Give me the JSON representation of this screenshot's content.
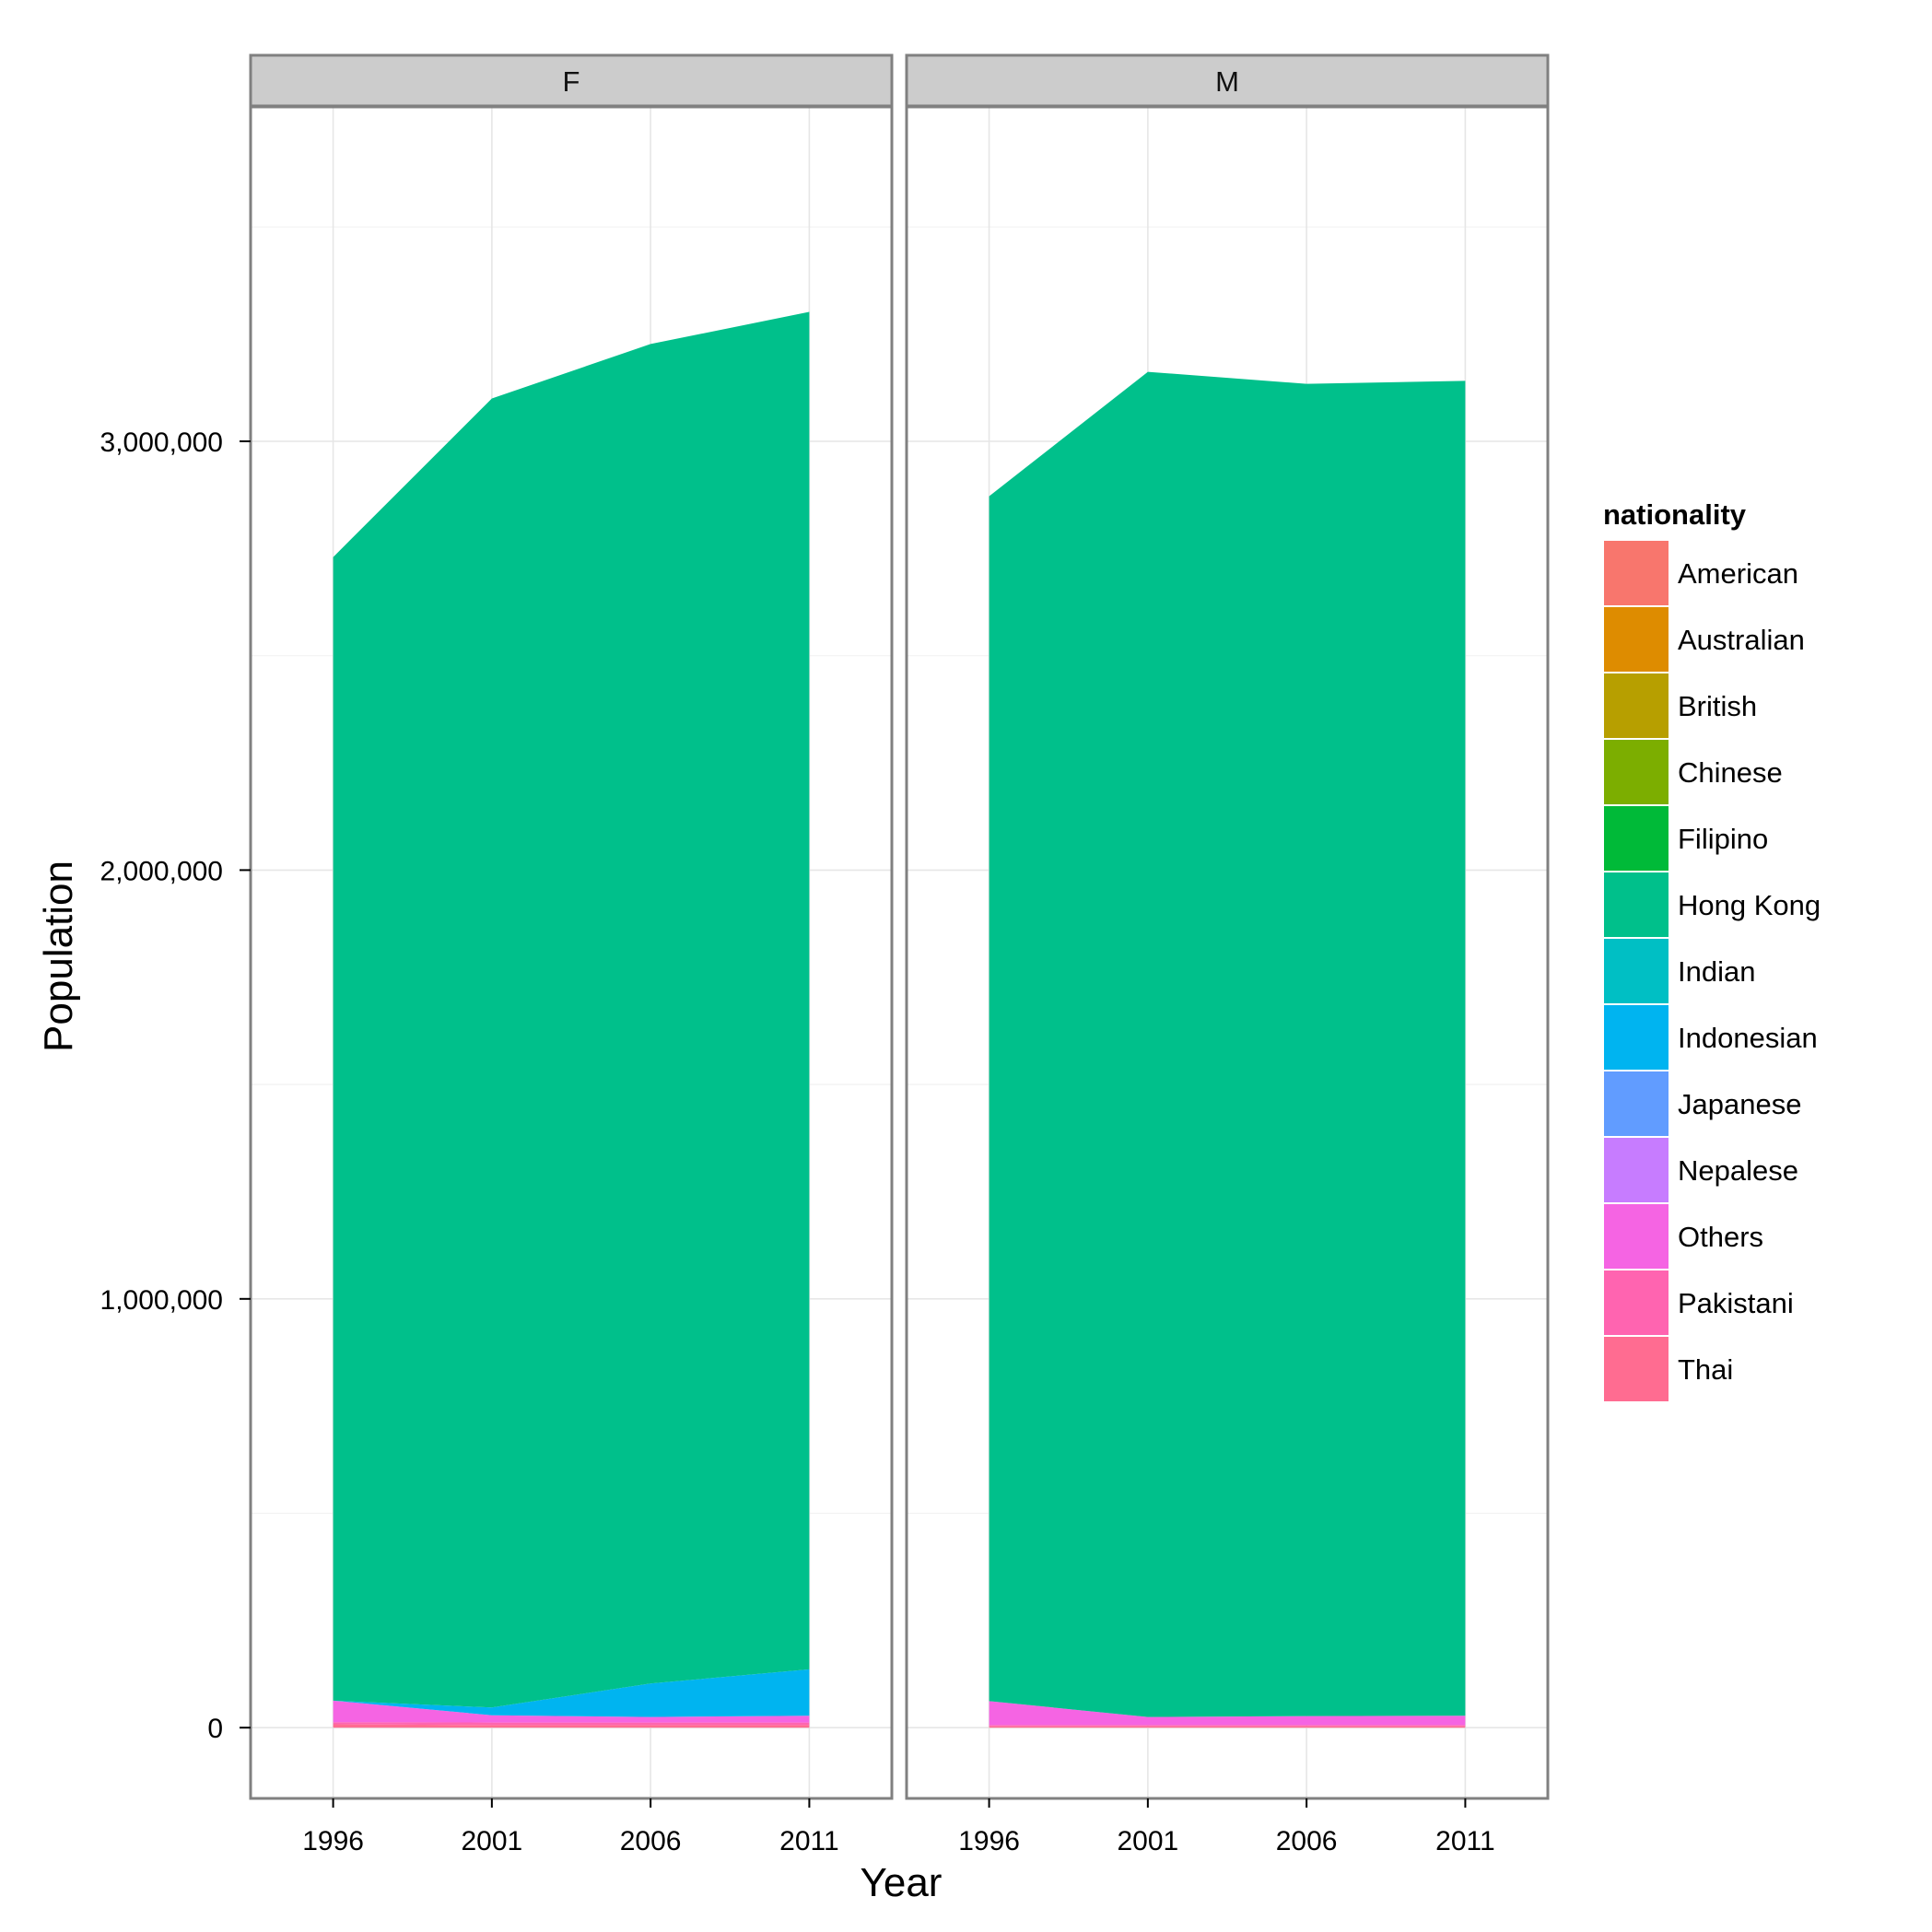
{
  "chart_data": {
    "type": "area",
    "stacked": true,
    "facet_by": "sex",
    "panels": [
      "F",
      "M"
    ],
    "xlabel": "Year",
    "ylabel": "Population",
    "x": [
      1996,
      2001,
      2006,
      2011
    ],
    "x_ticks": [
      "1996",
      "2001",
      "2006",
      "2011"
    ],
    "ylim": [
      -165000,
      3780000
    ],
    "y_ticks": [
      {
        "value": 0,
        "label": "0"
      },
      {
        "value": 1000000,
        "label": "1,000,000"
      },
      {
        "value": 2000000,
        "label": "2,000,000"
      },
      {
        "value": 3000000,
        "label": "3,000,000"
      }
    ],
    "grid": true,
    "legend": {
      "title": "nationality",
      "position": "right",
      "entries": [
        {
          "name": "American",
          "color": "#F8766D"
        },
        {
          "name": "Australian",
          "color": "#DE8C00"
        },
        {
          "name": "British",
          "color": "#B79F00"
        },
        {
          "name": "Chinese",
          "color": "#7CAE00"
        },
        {
          "name": "Filipino",
          "color": "#00BA38"
        },
        {
          "name": "Hong Kong",
          "color": "#00C08B"
        },
        {
          "name": "Indian",
          "color": "#00BFC4"
        },
        {
          "name": "Indonesian",
          "color": "#00B4F0"
        },
        {
          "name": "Japanese",
          "color": "#619CFF"
        },
        {
          "name": "Nepalese",
          "color": "#C77CFF"
        },
        {
          "name": "Others",
          "color": "#F564E3"
        },
        {
          "name": "Pakistani",
          "color": "#FF64B0"
        },
        {
          "name": "Thai",
          "color": "#FF6C91"
        }
      ]
    },
    "series": {
      "F": [
        {
          "name": "Thai",
          "values": [
            8000,
            6000,
            6000,
            6000
          ]
        },
        {
          "name": "Pakistani",
          "values": [
            5000,
            6000,
            6000,
            6000
          ]
        },
        {
          "name": "Others",
          "values": [
            50000,
            17000,
            13000,
            16000
          ]
        },
        {
          "name": "Nepalese",
          "values": [
            0,
            0,
            0,
            0
          ]
        },
        {
          "name": "Japanese",
          "values": [
            0,
            0,
            0,
            0
          ]
        },
        {
          "name": "Indonesian",
          "values": [
            0,
            18000,
            78000,
            108000
          ]
        },
        {
          "name": "Indian",
          "values": [
            0,
            0,
            0,
            0
          ]
        },
        {
          "name": "Hong Kong",
          "values": [
            2667000,
            3053000,
            3124000,
            3166000
          ]
        },
        {
          "name": "Filipino",
          "values": [
            0,
            0,
            0,
            0
          ]
        },
        {
          "name": "Chinese",
          "values": [
            0,
            0,
            0,
            0
          ]
        },
        {
          "name": "British",
          "values": [
            0,
            0,
            0,
            0
          ]
        },
        {
          "name": "Australian",
          "values": [
            0,
            0,
            0,
            0
          ]
        },
        {
          "name": "American",
          "values": [
            0,
            0,
            0,
            0
          ]
        }
      ],
      "M": [
        {
          "name": "Thai",
          "values": [
            3000,
            3000,
            3000,
            3000
          ]
        },
        {
          "name": "Pakistani",
          "values": [
            3000,
            3000,
            3000,
            3000
          ]
        },
        {
          "name": "Others",
          "values": [
            56000,
            19000,
            21000,
            22000
          ]
        },
        {
          "name": "Nepalese",
          "values": [
            0,
            0,
            0,
            0
          ]
        },
        {
          "name": "Japanese",
          "values": [
            0,
            0,
            0,
            0
          ]
        },
        {
          "name": "Indonesian",
          "values": [
            0,
            0,
            0,
            0
          ]
        },
        {
          "name": "Indian",
          "values": [
            0,
            0,
            0,
            0
          ]
        },
        {
          "name": "Hong Kong",
          "values": [
            2810000,
            3137000,
            3107000,
            3113000
          ]
        },
        {
          "name": "Filipino",
          "values": [
            0,
            0,
            0,
            0
          ]
        },
        {
          "name": "Chinese",
          "values": [
            0,
            0,
            0,
            0
          ]
        },
        {
          "name": "British",
          "values": [
            0,
            0,
            0,
            0
          ]
        },
        {
          "name": "Australian",
          "values": [
            0,
            0,
            0,
            0
          ]
        },
        {
          "name": "American",
          "values": [
            0,
            0,
            0,
            0
          ]
        }
      ]
    }
  }
}
